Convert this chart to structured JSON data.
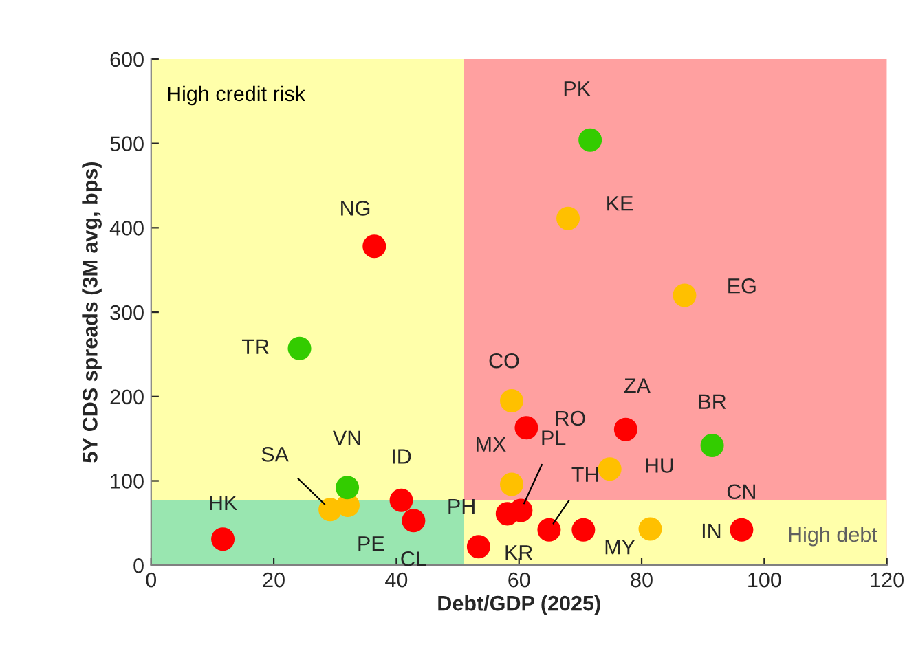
{
  "chart_data": {
    "type": "scatter",
    "xlabel": "Debt/GDP (2025)",
    "ylabel": "5Y CDS spreads (3M avg, bps)",
    "xlim": [
      0,
      120
    ],
    "xticks": [
      0,
      20,
      40,
      60,
      80,
      100,
      120
    ],
    "ylim": [
      0,
      600
    ],
    "yticks": [
      0,
      100,
      200,
      300,
      400,
      500,
      600
    ],
    "grid": false,
    "legend": false,
    "marker": "circle",
    "bands": [
      {
        "axis": "x",
        "from": 0,
        "to": 51,
        "color": "#ffffaa",
        "label": "High credit risk"
      },
      {
        "axis": "y",
        "from": 0,
        "to": 77,
        "color": "#99e6b0"
      },
      {
        "axis": "x",
        "from": 51,
        "to": 120,
        "color": "#ffa0a0"
      },
      {
        "axis": "y",
        "from": 0,
        "to": 77,
        "color": "#ffffaa",
        "label": "High debt"
      }
    ],
    "series": [
      {
        "color": "#ff0000",
        "x": [
          11.7,
          36.4,
          40.8,
          42.8,
          61.2,
          77.4,
          58.1,
          60.3,
          64.9,
          70.5,
          96.3,
          53.4
        ],
        "values": [
          31,
          378,
          77,
          53,
          163,
          161,
          61,
          65,
          42,
          42,
          42,
          22
        ]
      },
      {
        "color": "#ffc000",
        "x": [
          29.2,
          32.1,
          68.0,
          87.0,
          58.8,
          74.8,
          58.8,
          81.4
        ],
        "values": [
          66,
          71,
          411,
          320,
          195,
          114,
          96,
          43
        ]
      },
      {
        "color": "#33cc00",
        "x": [
          24.2,
          32.0,
          71.6,
          91.5
        ],
        "values": [
          257,
          92,
          504,
          142
        ]
      }
    ],
    "annotations": [
      {
        "text": "HK",
        "x": 11.7,
        "y": 31
      },
      {
        "text": "NG",
        "x": 36.4,
        "y": 378
      },
      {
        "text": "ID",
        "x": 40.8,
        "y": 77
      },
      {
        "text": "CL",
        "x": 42.8,
        "y": 53
      },
      {
        "text": "RO",
        "x": 61.2,
        "y": 163
      },
      {
        "text": "ZA",
        "x": 77.4,
        "y": 161
      },
      {
        "text": "PH",
        "x": 58.1,
        "y": 61
      },
      {
        "text": "PL",
        "x": 60.3,
        "y": 65
      },
      {
        "text": "TH",
        "x": 64.9,
        "y": 42
      },
      {
        "text": "MY",
        "x": 70.5,
        "y": 42
      },
      {
        "text": "CN",
        "x": 96.3,
        "y": 42
      },
      {
        "text": "KR",
        "x": 53.4,
        "y": 22
      },
      {
        "text": "SA",
        "x": 29.2,
        "y": 66
      },
      {
        "text": "PE",
        "x": 32.1,
        "y": 71
      },
      {
        "text": "KE",
        "x": 68.0,
        "y": 411
      },
      {
        "text": "EG",
        "x": 87.0,
        "y": 320
      },
      {
        "text": "CO",
        "x": 58.8,
        "y": 195
      },
      {
        "text": "HU",
        "x": 74.8,
        "y": 114
      },
      {
        "text": "MX",
        "x": 58.8,
        "y": 96
      },
      {
        "text": "IN",
        "x": 81.4,
        "y": 43
      },
      {
        "text": "TR",
        "x": 24.2,
        "y": 257
      },
      {
        "text": "VN",
        "x": 32.0,
        "y": 92
      },
      {
        "text": "PK",
        "x": 71.6,
        "y": 504
      },
      {
        "text": "BR",
        "x": 91.5,
        "y": 142
      }
    ]
  }
}
